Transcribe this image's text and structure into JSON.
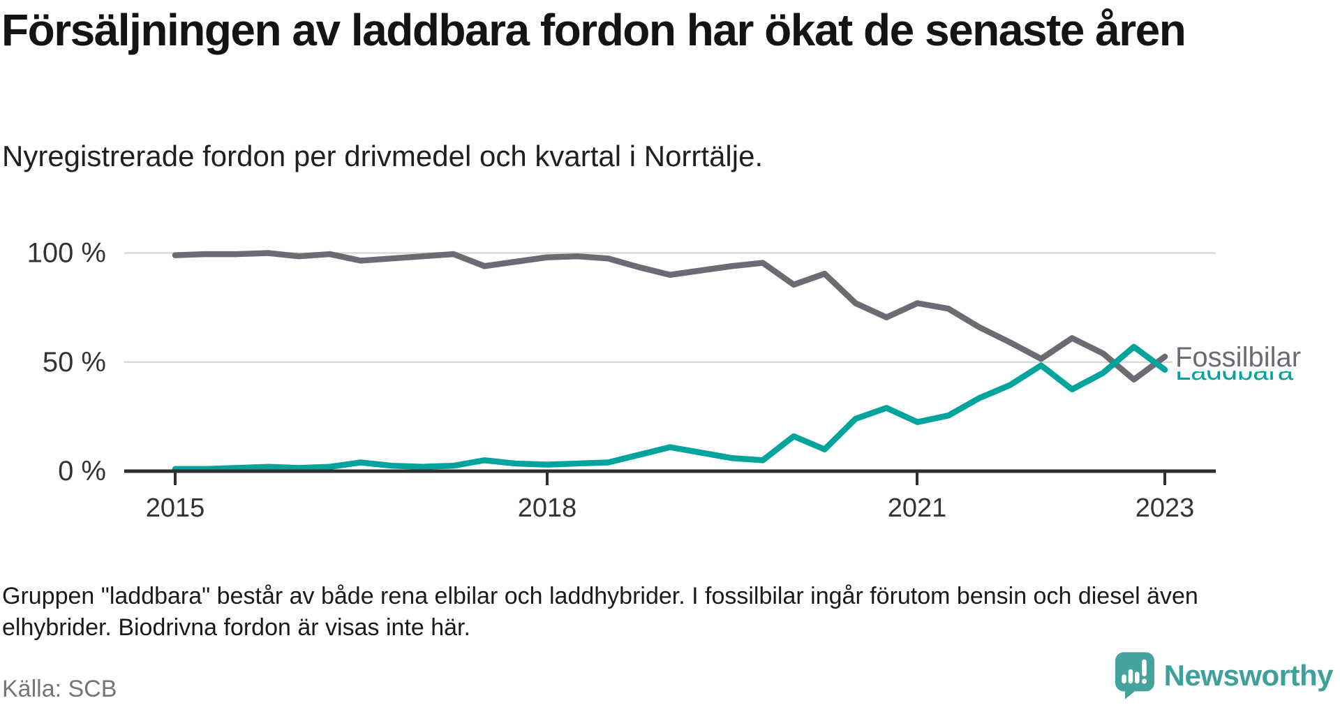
{
  "header": {
    "title": "Försäljningen av laddbara fordon har ökat de senaste åren",
    "subtitle": "Nyregistrerade fordon per drivmedel och kvartal i Norrtälje."
  },
  "chart_data": {
    "type": "line",
    "title": "Försäljningen av laddbara fordon har ökat de senaste åren",
    "subtitle": "Nyregistrerade fordon per drivmedel och kvartal i Norrtälje.",
    "unit": "%",
    "ylim": [
      0,
      100
    ],
    "grid": "horizontal",
    "legend_position": "end-of-line",
    "y_tick_labels": [
      "100 %",
      "50 %",
      "0 %"
    ],
    "x_tick_labels": [
      "2015",
      "2018",
      "2021",
      "2023"
    ],
    "categories": [
      "2015 Q1",
      "2015 Q2",
      "2015 Q3",
      "2015 Q4",
      "2016 Q1",
      "2016 Q2",
      "2016 Q3",
      "2016 Q4",
      "2017 Q1",
      "2017 Q2",
      "2017 Q3",
      "2017 Q4",
      "2018 Q1",
      "2018 Q2",
      "2018 Q3",
      "2018 Q4",
      "2019 Q1",
      "2019 Q2",
      "2019 Q3",
      "2019 Q4",
      "2020 Q1",
      "2020 Q2",
      "2020 Q3",
      "2020 Q4",
      "2021 Q1",
      "2021 Q2",
      "2021 Q3",
      "2021 Q4",
      "2022 Q1",
      "2022 Q2",
      "2022 Q3",
      "2022 Q4",
      "2023 Q1"
    ],
    "series": [
      {
        "name": "Fossilbilar",
        "color": "#6b6b73",
        "values": [
          99,
          99.5,
          99.5,
          100,
          98.5,
          99.5,
          96.5,
          97.5,
          98.5,
          99.5,
          94,
          96,
          98,
          98.5,
          97.5,
          93.5,
          90,
          92,
          94,
          95.5,
          85.5,
          90.5,
          77,
          70.5,
          77,
          74.5,
          66,
          59,
          51.5,
          61,
          54,
          42,
          52.5
        ]
      },
      {
        "name": "Laddbara",
        "color": "#00a49c",
        "values": [
          1,
          1,
          1.5,
          2,
          1.5,
          2,
          4,
          2.5,
          2,
          2.5,
          5,
          3.5,
          3,
          3.5,
          4,
          7.5,
          11,
          8.5,
          6,
          5,
          16,
          10,
          24,
          29,
          22.5,
          25.5,
          33.5,
          39.5,
          48.5,
          37.5,
          45,
          57,
          46.5
        ]
      }
    ]
  },
  "footer": {
    "note": "Gruppen \"laddbara\" består av både rena elbilar och laddhybrider. I fossilbilar ingår förutom bensin och diesel även elhybrider. Biodrivna fordon är visas inte här.",
    "source": "Källa: SCB",
    "brand": "Newsworthy"
  }
}
